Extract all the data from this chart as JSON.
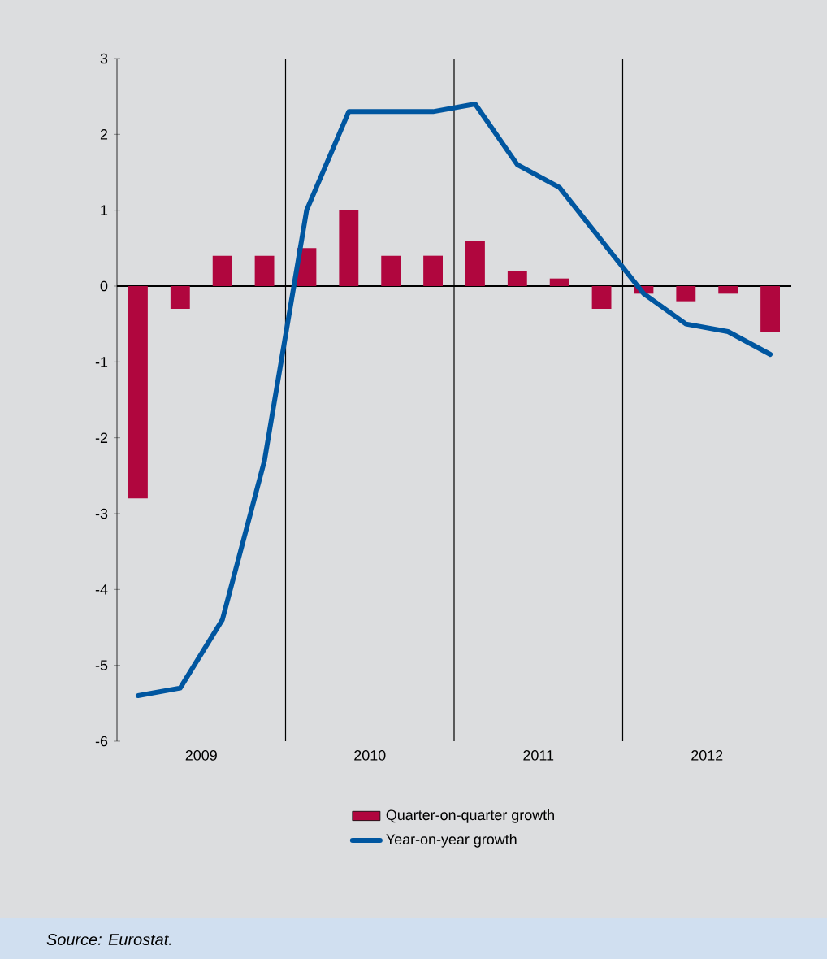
{
  "chart_data": {
    "type": "bar",
    "x": [
      2009.125,
      2009.375,
      2009.625,
      2009.875,
      2010.125,
      2010.375,
      2010.625,
      2010.875,
      2011.125,
      2011.375,
      2011.625,
      2011.875,
      2012.125,
      2012.375,
      2012.625,
      2012.875
    ],
    "series": [
      {
        "name": "Quarter-on-quarter growth",
        "color": "#b0063e",
        "values": [
          -2.8,
          -0.3,
          0.4,
          0.4,
          0.5,
          1.0,
          0.4,
          0.4,
          0.6,
          0.2,
          0.1,
          -0.3,
          -0.1,
          -0.2,
          -0.1,
          -0.6
        ]
      },
      {
        "name": "Year-on-year growth",
        "type": "line",
        "color": "#0056a0",
        "values": [
          -5.4,
          -5.3,
          -4.4,
          -2.3,
          1.0,
          2.3,
          2.3,
          2.3,
          2.4,
          1.6,
          1.3,
          0.6,
          -0.1,
          -0.5,
          -0.6,
          -0.9
        ]
      }
    ],
    "xlim": [
      2009,
      2013
    ],
    "xticks": [
      {
        "value": 2009.5,
        "label": "2009"
      },
      {
        "value": 2010.5,
        "label": "2010"
      },
      {
        "value": 2011.5,
        "label": "2011"
      },
      {
        "value": 2012.5,
        "label": "2012"
      }
    ],
    "ylim": [
      -6,
      3
    ],
    "yticks": [
      -6,
      -5,
      -4,
      -3,
      -2,
      -1,
      0,
      1,
      2,
      3
    ],
    "ref_lines": [
      {
        "axis": "x",
        "value": 2010
      },
      {
        "axis": "x",
        "value": 2011
      },
      {
        "axis": "x",
        "value": 2012
      }
    ],
    "legend": "bottom",
    "annotations": [
      "Source: Eurostat."
    ]
  }
}
